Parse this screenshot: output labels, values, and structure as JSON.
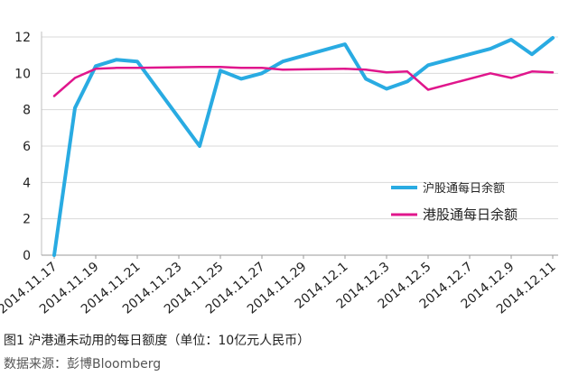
{
  "chart_data": {
    "type": "line",
    "ylim": [
      0,
      12
    ],
    "yticks": [
      0,
      2,
      4,
      6,
      8,
      10,
      12
    ],
    "x_labels": [
      "2014.11.17",
      "2014.11.19",
      "2014.11.21",
      "2014.11.23",
      "2014.11.25",
      "2014.11.27",
      "2014.11.29",
      "2014.12.1",
      "2014.12.3",
      "2014.12.5",
      "2014.12.7",
      "2014.12.9",
      "2014.12.11"
    ],
    "grid": "horizontal",
    "legend_position": "right",
    "series": [
      {
        "name": "沪股通每日余额",
        "color": "#29abe2",
        "points": [
          {
            "x": "2014.11.17",
            "y": 0
          },
          {
            "x": "2014.11.18",
            "y": 8.1
          },
          {
            "x": "2014.11.19",
            "y": 10.4
          },
          {
            "x": "2014.11.20",
            "y": 10.75
          },
          {
            "x": "2014.11.21",
            "y": 10.65
          },
          {
            "x": "2014.11.24",
            "y": 6.0
          },
          {
            "x": "2014.11.25",
            "y": 10.15
          },
          {
            "x": "2014.11.26",
            "y": 9.7
          },
          {
            "x": "2014.11.27",
            "y": 10.0
          },
          {
            "x": "2014.11.28",
            "y": 10.65
          },
          {
            "x": "2014.12.1",
            "y": 11.6
          },
          {
            "x": "2014.12.2",
            "y": 9.7
          },
          {
            "x": "2014.12.3",
            "y": 9.15
          },
          {
            "x": "2014.12.4",
            "y": 9.55
          },
          {
            "x": "2014.12.5",
            "y": 10.45
          },
          {
            "x": "2014.12.8",
            "y": 11.35
          },
          {
            "x": "2014.12.9",
            "y": 11.85
          },
          {
            "x": "2014.12.10",
            "y": 11.05
          },
          {
            "x": "2014.12.11",
            "y": 11.95
          }
        ]
      },
      {
        "name": "港股通每日余额",
        "color": "#e0168c",
        "points": [
          {
            "x": "2014.11.17",
            "y": 8.75
          },
          {
            "x": "2014.11.18",
            "y": 9.75
          },
          {
            "x": "2014.11.19",
            "y": 10.25
          },
          {
            "x": "2014.11.20",
            "y": 10.3
          },
          {
            "x": "2014.11.21",
            "y": 10.3
          },
          {
            "x": "2014.11.24",
            "y": 10.35
          },
          {
            "x": "2014.11.25",
            "y": 10.35
          },
          {
            "x": "2014.11.26",
            "y": 10.3
          },
          {
            "x": "2014.11.27",
            "y": 10.3
          },
          {
            "x": "2014.11.28",
            "y": 10.2
          },
          {
            "x": "2014.12.1",
            "y": 10.25
          },
          {
            "x": "2014.12.2",
            "y": 10.2
          },
          {
            "x": "2014.12.3",
            "y": 10.05
          },
          {
            "x": "2014.12.4",
            "y": 10.1
          },
          {
            "x": "2014.12.5",
            "y": 9.1
          },
          {
            "x": "2014.12.8",
            "y": 10.0
          },
          {
            "x": "2014.12.9",
            "y": 9.75
          },
          {
            "x": "2014.12.10",
            "y": 10.1
          },
          {
            "x": "2014.12.11",
            "y": 10.05
          }
        ]
      }
    ]
  },
  "caption": "图1  沪港通未动用的每日额度（单位：10亿元人民币）",
  "source": "数据来源：彭博Bloomberg"
}
